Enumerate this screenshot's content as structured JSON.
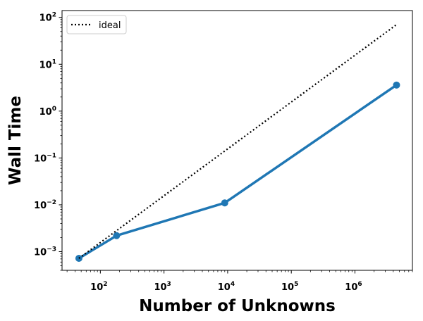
{
  "chart_data": {
    "type": "line",
    "xscale": "log",
    "yscale": "log",
    "xlabel": "Number of Unknowns",
    "ylabel": "Wall Time",
    "xlim": [
      25,
      8000000
    ],
    "ylim": [
      0.0004,
      140
    ],
    "grid": false,
    "legend_position": "top-left",
    "x_ticks": [
      {
        "base": "10",
        "exp": "2",
        "value": 100
      },
      {
        "base": "10",
        "exp": "3",
        "value": 1000
      },
      {
        "base": "10",
        "exp": "4",
        "value": 10000
      },
      {
        "base": "10",
        "exp": "5",
        "value": 100000
      },
      {
        "base": "10",
        "exp": "6",
        "value": 1000000
      }
    ],
    "y_ticks": [
      {
        "base": "10",
        "exp": "−3",
        "value": 0.001
      },
      {
        "base": "10",
        "exp": "−2",
        "value": 0.01
      },
      {
        "base": "10",
        "exp": "−1",
        "value": 0.1
      },
      {
        "base": "10",
        "exp": "0",
        "value": 1
      },
      {
        "base": "10",
        "exp": "1",
        "value": 10
      },
      {
        "base": "10",
        "exp": "2",
        "value": 100
      }
    ],
    "series": [
      {
        "name": "",
        "style": "solid",
        "marker": "circle",
        "color": "#1f77b4",
        "x": [
          46,
          180,
          9000,
          4500000
        ],
        "y": [
          0.00072,
          0.0022,
          0.011,
          3.6
        ]
      },
      {
        "name": "ideal",
        "style": "dotted",
        "marker": "none",
        "color": "#000000",
        "x": [
          46,
          4500000
        ],
        "y": [
          0.00072,
          70
        ]
      }
    ]
  }
}
